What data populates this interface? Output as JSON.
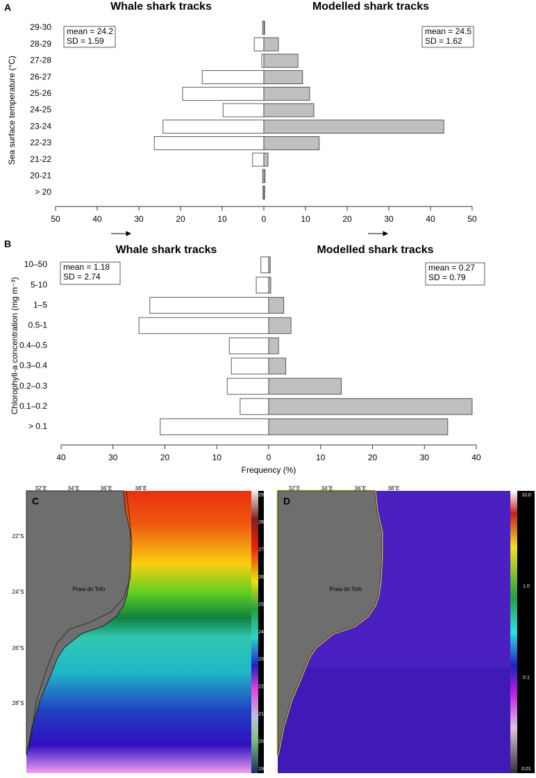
{
  "chart_data": [
    {
      "type": "pyramid",
      "label": "A",
      "ylabel": "Sea surface temperature (°C)",
      "categories": [
        "29-30",
        "28-29",
        "27-28",
        "26-27",
        "25-26",
        "24-25",
        "23-24",
        "22-23",
        "21-22",
        "20-21",
        "> 20"
      ],
      "series": [
        {
          "name": "Whale shark tracks",
          "color": "#ffffff",
          "side": "left",
          "annotation": [
            "mean = 24.2",
            "SD = 1.59"
          ],
          "values": [
            0.3,
            2.3,
            0.5,
            14.8,
            19.5,
            9.8,
            24.2,
            26.3,
            2.7,
            0.3,
            0.2
          ]
        },
        {
          "name": "Modelled shark tracks",
          "color": "#c0c0c0",
          "side": "right",
          "annotation": [
            "mean = 24.5",
            "SD = 1.62"
          ],
          "values": [
            0.2,
            3.5,
            8.2,
            9.3,
            11,
            12,
            43.2,
            13.3,
            1,
            0.3,
            0.2
          ]
        }
      ],
      "xlim": [
        -50,
        50
      ],
      "xticks": [
        {
          "value": -50,
          "label": "50"
        },
        {
          "value": -40,
          "label": "40"
        },
        {
          "value": -30,
          "label": "30"
        },
        {
          "value": -20,
          "label": "20"
        },
        {
          "value": -10,
          "label": "10"
        },
        0,
        10,
        20,
        30,
        40,
        50
      ]
    },
    {
      "type": "pyramid",
      "label": "B",
      "ylabel": "Chlorophyll-a concentration (mg m⁻³)",
      "xlabel": "Frequency (%)",
      "categories": [
        "10–50",
        "5-10",
        "1–5",
        "0.5-1",
        "0.4–0.5",
        "0.3–0.4",
        "0.2–0.3",
        "0.1–0.2",
        "> 0.1"
      ],
      "series": [
        {
          "name": "Whale shark tracks",
          "color": "#ffffff",
          "side": "left",
          "annotation": [
            "mean = 1.18",
            "SD = 2.74"
          ],
          "values": [
            1.5,
            2.4,
            22.9,
            25,
            7.6,
            7.2,
            8,
            5.5,
            20.9
          ]
        },
        {
          "name": "Modelled shark tracks",
          "color": "#c0c0c0",
          "side": "right",
          "annotation": [
            "mean = 0.27",
            "SD = 0.79"
          ],
          "values": [
            0.3,
            0.4,
            2.9,
            4.3,
            1.9,
            3.3,
            14,
            39.2,
            34.5
          ]
        }
      ],
      "xlim": [
        -40,
        40
      ],
      "xticks": [
        {
          "value": -40,
          "label": "40"
        },
        {
          "value": -30,
          "label": "30"
        },
        {
          "value": -20,
          "label": "20"
        },
        {
          "value": -10,
          "label": "10"
        },
        0,
        10,
        20,
        30,
        40
      ]
    }
  ],
  "maps": {
    "c": {
      "label": "C",
      "place": "Praia do Tofo",
      "lon": [
        "32˚E",
        "34˚E",
        "36˚E",
        "38˚E"
      ],
      "lat": [
        "22˚S",
        "24˚S",
        "26˚S",
        "28˚S"
      ],
      "scale": [
        29,
        28,
        27,
        26,
        25,
        24,
        23,
        22,
        21,
        20,
        19
      ]
    },
    "d": {
      "label": "D",
      "place": "Praia do Tofo",
      "lon": [
        "32˚E",
        "34˚E",
        "36˚E",
        "38˚E"
      ],
      "scale": [
        "10.0",
        "1.0",
        "0.1",
        "0.01"
      ]
    }
  }
}
